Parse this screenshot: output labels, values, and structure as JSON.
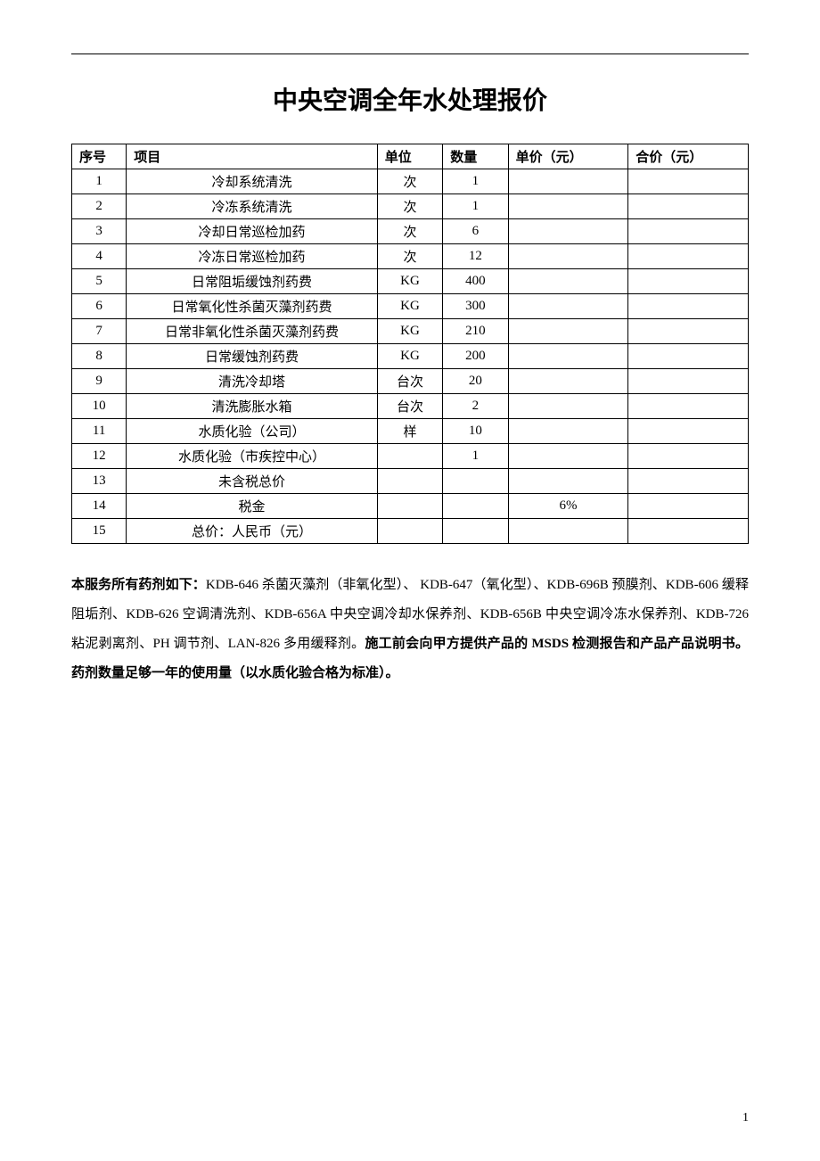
{
  "document": {
    "title": "中央空调全年水处理报价",
    "page_number": "1"
  },
  "table": {
    "headers": {
      "seq": "序号",
      "item": "项目",
      "unit": "单位",
      "qty": "数量",
      "unit_price": "单价（元）",
      "total_price": "合价（元）"
    },
    "rows": [
      {
        "seq": "1",
        "item": "冷却系统清洗",
        "unit": "次",
        "qty": "1",
        "unit_price": "",
        "total_price": ""
      },
      {
        "seq": "2",
        "item": "冷冻系统清洗",
        "unit": "次",
        "qty": "1",
        "unit_price": "",
        "total_price": ""
      },
      {
        "seq": "3",
        "item": "冷却日常巡检加药",
        "unit": "次",
        "qty": "6",
        "unit_price": "",
        "total_price": ""
      },
      {
        "seq": "4",
        "item": "冷冻日常巡检加药",
        "unit": "次",
        "qty": "12",
        "unit_price": "",
        "total_price": ""
      },
      {
        "seq": "5",
        "item": "日常阻垢缓蚀剂药费",
        "unit": "KG",
        "qty": "400",
        "unit_price": "",
        "total_price": ""
      },
      {
        "seq": "6",
        "item": "日常氧化性杀菌灭藻剂药费",
        "unit": "KG",
        "qty": "300",
        "unit_price": "",
        "total_price": ""
      },
      {
        "seq": "7",
        "item": "日常非氧化性杀菌灭藻剂药费",
        "unit": "KG",
        "qty": "210",
        "unit_price": "",
        "total_price": ""
      },
      {
        "seq": "8",
        "item": "日常缓蚀剂药费",
        "unit": "KG",
        "qty": "200",
        "unit_price": "",
        "total_price": ""
      },
      {
        "seq": "9",
        "item": "清洗冷却塔",
        "unit": "台次",
        "qty": "20",
        "unit_price": "",
        "total_price": ""
      },
      {
        "seq": "10",
        "item": "清洗膨胀水箱",
        "unit": "台次",
        "qty": "2",
        "unit_price": "",
        "total_price": ""
      },
      {
        "seq": "11",
        "item": "水质化验（公司）",
        "unit": "样",
        "qty": "10",
        "unit_price": "",
        "total_price": ""
      },
      {
        "seq": "12",
        "item": "水质化验（市疾控中心）",
        "unit": "",
        "qty": "1",
        "unit_price": "",
        "total_price": ""
      },
      {
        "seq": "13",
        "item": "未含税总价",
        "unit": "",
        "qty": "",
        "unit_price": "",
        "total_price": ""
      },
      {
        "seq": "14",
        "item": "税金",
        "unit": "",
        "qty": "",
        "unit_price": "6%",
        "total_price": ""
      },
      {
        "seq": "15",
        "item": "总价：人民币（元）",
        "unit": "",
        "qty": "",
        "unit_price": "",
        "total_price": ""
      }
    ]
  },
  "paragraph": {
    "lead_bold": "本服务所有药剂如下：",
    "body1": "KDB-646 杀菌灭藻剂（非氧化型）、 KDB-647（氧化型）、KDB-696B 预膜剂、KDB-606 缓释阻垢剂、KDB-626 空调清洗剂、KDB-656A 中央空调冷却水保养剂、KDB-656B 中央空调冷冻水保养剂、KDB-726 粘泥剥离剂、PH 调节剂、LAN-826 多用缓释剂。",
    "tail_bold": "施工前会向甲方提供产品的 MSDS 检测报告和产品产品说明书。药剂数量足够一年的使用量（以水质化验合格为标准）。"
  }
}
